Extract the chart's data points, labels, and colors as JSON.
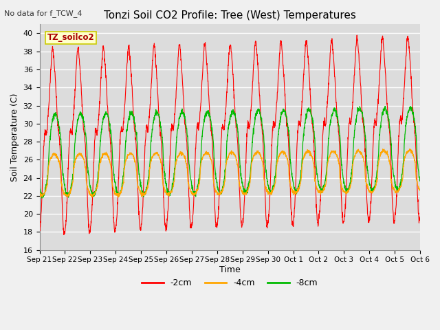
{
  "title": "Tonzi Soil CO2 Profile: Tree (West) Temperatures",
  "no_data_text": "No data for f_TCW_4",
  "ylabel": "Soil Temperature (C)",
  "xlabel": "Time",
  "legend_box_label": "TZ_soilco2",
  "ylim": [
    16,
    41
  ],
  "yticks": [
    16,
    18,
    20,
    22,
    24,
    26,
    28,
    30,
    32,
    34,
    36,
    38,
    40
  ],
  "x_labels": [
    "Sep 21",
    "Sep 22",
    "Sep 23",
    "Sep 24",
    "Sep 25",
    "Sep 26",
    "Sep 27",
    "Sep 28",
    "Sep 29",
    "Sep 30",
    "Oct 1",
    "Oct 2",
    "Oct 3",
    "Oct 4",
    "Oct 5",
    "Oct 6"
  ],
  "series": [
    {
      "label": "-2cm",
      "color": "#ff0000"
    },
    {
      "label": "-4cm",
      "color": "#ffa500"
    },
    {
      "label": "-8cm",
      "color": "#00bb00"
    }
  ],
  "bg_color": "#dcdcdc",
  "grid_color": "#ffffff",
  "legend_box_bg": "#ffffcc",
  "legend_box_edge": "#cccc00",
  "fig_bg": "#f0f0f0"
}
